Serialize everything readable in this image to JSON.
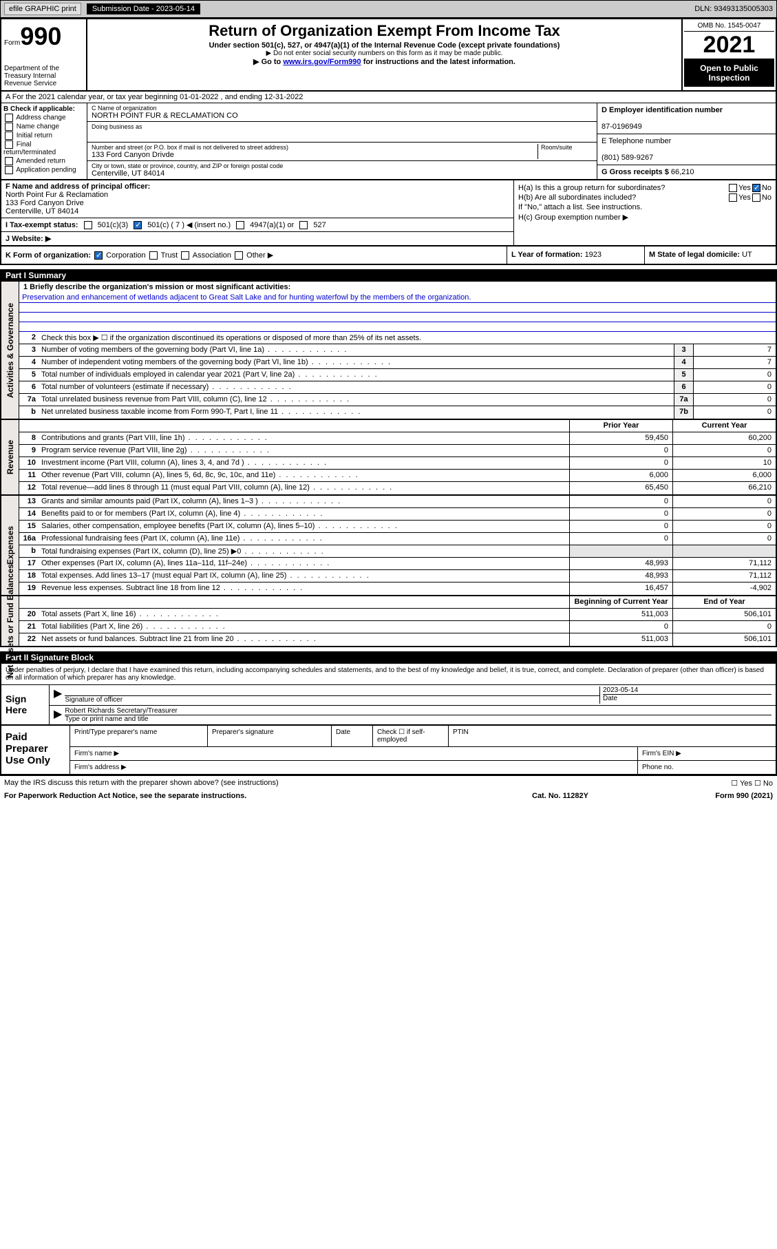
{
  "header_bar": {
    "efile": "efile GRAPHIC print",
    "sub_date_label": "Submission Date - 2023-05-14",
    "dln": "DLN: 93493135005303"
  },
  "form_header": {
    "form_word": "Form",
    "form_no": "990",
    "dept": "Department of the Treasury Internal Revenue Service",
    "title": "Return of Organization Exempt From Income Tax",
    "sub1": "Under section 501(c), 527, or 4947(a)(1) of the Internal Revenue Code (except private foundations)",
    "sub2": "▶ Do not enter social security numbers on this form as it may be made public.",
    "sub3_pre": "▶ Go to ",
    "sub3_link": "www.irs.gov/Form990",
    "sub3_post": " for instructions and the latest information.",
    "omb": "OMB No. 1545-0047",
    "year": "2021",
    "open": "Open to Public Inspection"
  },
  "row_a": "A For the 2021 calendar year, or tax year beginning 01-01-2022  , and ending 12-31-2022",
  "section_b": {
    "label": "B Check if applicable:",
    "items": [
      "Address change",
      "Name change",
      "Initial return",
      "Final return/terminated",
      "Amended return",
      "Application pending"
    ]
  },
  "section_c": {
    "name_label": "C Name of organization",
    "name": "NORTH POINT FUR & RECLAMATION CO",
    "dba_label": "Doing business as",
    "addr_label": "Number and street (or P.O. box if mail is not delivered to street address)",
    "room_label": "Room/suite",
    "addr": "133 Ford Canyon Drivde",
    "city_label": "City or town, state or province, country, and ZIP or foreign postal code",
    "city": "Centerville, UT  84014"
  },
  "section_d": {
    "label": "D Employer identification number",
    "value": "87-0196949"
  },
  "section_e": {
    "label": "E Telephone number",
    "value": "(801) 589-9267"
  },
  "section_g": {
    "label": "G Gross receipts $ ",
    "value": "66,210"
  },
  "section_f": {
    "label": "F Name and address of principal officer:",
    "name": "North Point Fur & Reclamation",
    "addr1": "133 Ford Canyon Drive",
    "addr2": "Centerville, UT  84014"
  },
  "section_h": {
    "ha": "H(a)  Is this a group return for subordinates?",
    "hb": "H(b)  Are all subordinates included?",
    "hnote": "If \"No,\" attach a list. See instructions.",
    "hc": "H(c)  Group exemption number ▶"
  },
  "section_i": {
    "label": "I  Tax-exempt status:",
    "opts": [
      "501(c)(3)",
      "501(c) ( 7 ) ◀ (insert no.)",
      "4947(a)(1) or",
      "527"
    ]
  },
  "section_j": {
    "label": "J  Website: ▶"
  },
  "section_k": {
    "label": "K Form of organization:",
    "opts": [
      "Corporation",
      "Trust",
      "Association",
      "Other ▶"
    ]
  },
  "section_l": {
    "label": "L Year of formation: ",
    "value": "1923"
  },
  "section_m": {
    "label": "M State of legal domicile: ",
    "value": "UT"
  },
  "part1": {
    "header": "Part I    Summary",
    "mission_label": "1   Briefly describe the organization's mission or most significant activities:",
    "mission": "Preservation and enhancement of wetlands adjacent to Great Salt Lake and for hunting waterfowl by the members of the organization.",
    "line2": "Check this box ▶ ☐  if the organization discontinued its operations or disposed of more than 25% of its net assets.",
    "governance": [
      {
        "n": "3",
        "d": "Number of voting members of the governing body (Part VI, line 1a)",
        "b": "3",
        "v": "7"
      },
      {
        "n": "4",
        "d": "Number of independent voting members of the governing body (Part VI, line 1b)",
        "b": "4",
        "v": "7"
      },
      {
        "n": "5",
        "d": "Total number of individuals employed in calendar year 2021 (Part V, line 2a)",
        "b": "5",
        "v": "0"
      },
      {
        "n": "6",
        "d": "Total number of volunteers (estimate if necessary)",
        "b": "6",
        "v": "0"
      },
      {
        "n": "7a",
        "d": "Total unrelated business revenue from Part VIII, column (C), line 12",
        "b": "7a",
        "v": "0"
      },
      {
        "n": "b",
        "d": "Net unrelated business taxable income from Form 990-T, Part I, line 11",
        "b": "7b",
        "v": "0"
      }
    ],
    "col_prior": "Prior Year",
    "col_current": "Current Year",
    "revenue": [
      {
        "n": "8",
        "d": "Contributions and grants (Part VIII, line 1h)",
        "p": "59,450",
        "c": "60,200"
      },
      {
        "n": "9",
        "d": "Program service revenue (Part VIII, line 2g)",
        "p": "0",
        "c": "0"
      },
      {
        "n": "10",
        "d": "Investment income (Part VIII, column (A), lines 3, 4, and 7d )",
        "p": "0",
        "c": "10"
      },
      {
        "n": "11",
        "d": "Other revenue (Part VIII, column (A), lines 5, 6d, 8c, 9c, 10c, and 11e)",
        "p": "6,000",
        "c": "6,000"
      },
      {
        "n": "12",
        "d": "Total revenue—add lines 8 through 11 (must equal Part VIII, column (A), line 12)",
        "p": "65,450",
        "c": "66,210"
      }
    ],
    "expenses": [
      {
        "n": "13",
        "d": "Grants and similar amounts paid (Part IX, column (A), lines 1–3 )",
        "p": "0",
        "c": "0"
      },
      {
        "n": "14",
        "d": "Benefits paid to or for members (Part IX, column (A), line 4)",
        "p": "0",
        "c": "0"
      },
      {
        "n": "15",
        "d": "Salaries, other compensation, employee benefits (Part IX, column (A), lines 5–10)",
        "p": "0",
        "c": "0"
      },
      {
        "n": "16a",
        "d": "Professional fundraising fees (Part IX, column (A), line 11e)",
        "p": "0",
        "c": "0"
      },
      {
        "n": "b",
        "d": "Total fundraising expenses (Part IX, column (D), line 25) ▶0",
        "p": "",
        "c": "",
        "shaded": true
      },
      {
        "n": "17",
        "d": "Other expenses (Part IX, column (A), lines 11a–11d, 11f–24e)",
        "p": "48,993",
        "c": "71,112"
      },
      {
        "n": "18",
        "d": "Total expenses. Add lines 13–17 (must equal Part IX, column (A), line 25)",
        "p": "48,993",
        "c": "71,112"
      },
      {
        "n": "19",
        "d": "Revenue less expenses. Subtract line 18 from line 12",
        "p": "16,457",
        "c": "-4,902"
      }
    ],
    "col_begin": "Beginning of Current Year",
    "col_end": "End of Year",
    "netassets": [
      {
        "n": "20",
        "d": "Total assets (Part X, line 16)",
        "p": "511,003",
        "c": "506,101"
      },
      {
        "n": "21",
        "d": "Total liabilities (Part X, line 26)",
        "p": "0",
        "c": "0"
      },
      {
        "n": "22",
        "d": "Net assets or fund balances. Subtract line 21 from line 20",
        "p": "511,003",
        "c": "506,101"
      }
    ],
    "side_gov": "Activities & Governance",
    "side_rev": "Revenue",
    "side_exp": "Expenses",
    "side_net": "Net Assets or Fund Balances"
  },
  "part2": {
    "header": "Part II    Signature Block",
    "decl": "Under penalties of perjury, I declare that I have examined this return, including accompanying schedules and statements, and to the best of my knowledge and belief, it is true, correct, and complete. Declaration of preparer (other than officer) is based on all information of which preparer has any knowledge.",
    "sign_here": "Sign Here",
    "sig_officer": "Signature of officer",
    "sig_date": "2023-05-14",
    "date_label": "Date",
    "officer_name": "Robert Richards  Secretary/Treasurer",
    "type_name": "Type or print name and title",
    "paid": "Paid Preparer Use Only",
    "prep_name": "Print/Type preparer's name",
    "prep_sig": "Preparer's signature",
    "prep_date": "Date",
    "prep_check": "Check ☐ if self-employed",
    "ptin": "PTIN",
    "firm_name": "Firm's name  ▶",
    "firm_ein": "Firm's EIN ▶",
    "firm_addr": "Firm's address ▶",
    "phone": "Phone no."
  },
  "footer": {
    "discuss": "May the IRS discuss this return with the preparer shown above? (see instructions)",
    "yn": "☐ Yes  ☐ No",
    "notice": "For Paperwork Reduction Act Notice, see the separate instructions.",
    "cat": "Cat. No. 11282Y",
    "form": "Form 990 (2021)"
  },
  "colors": {
    "link": "#0000cc",
    "checked": "#1e6ec8",
    "side_bg": "#ece8e6"
  }
}
